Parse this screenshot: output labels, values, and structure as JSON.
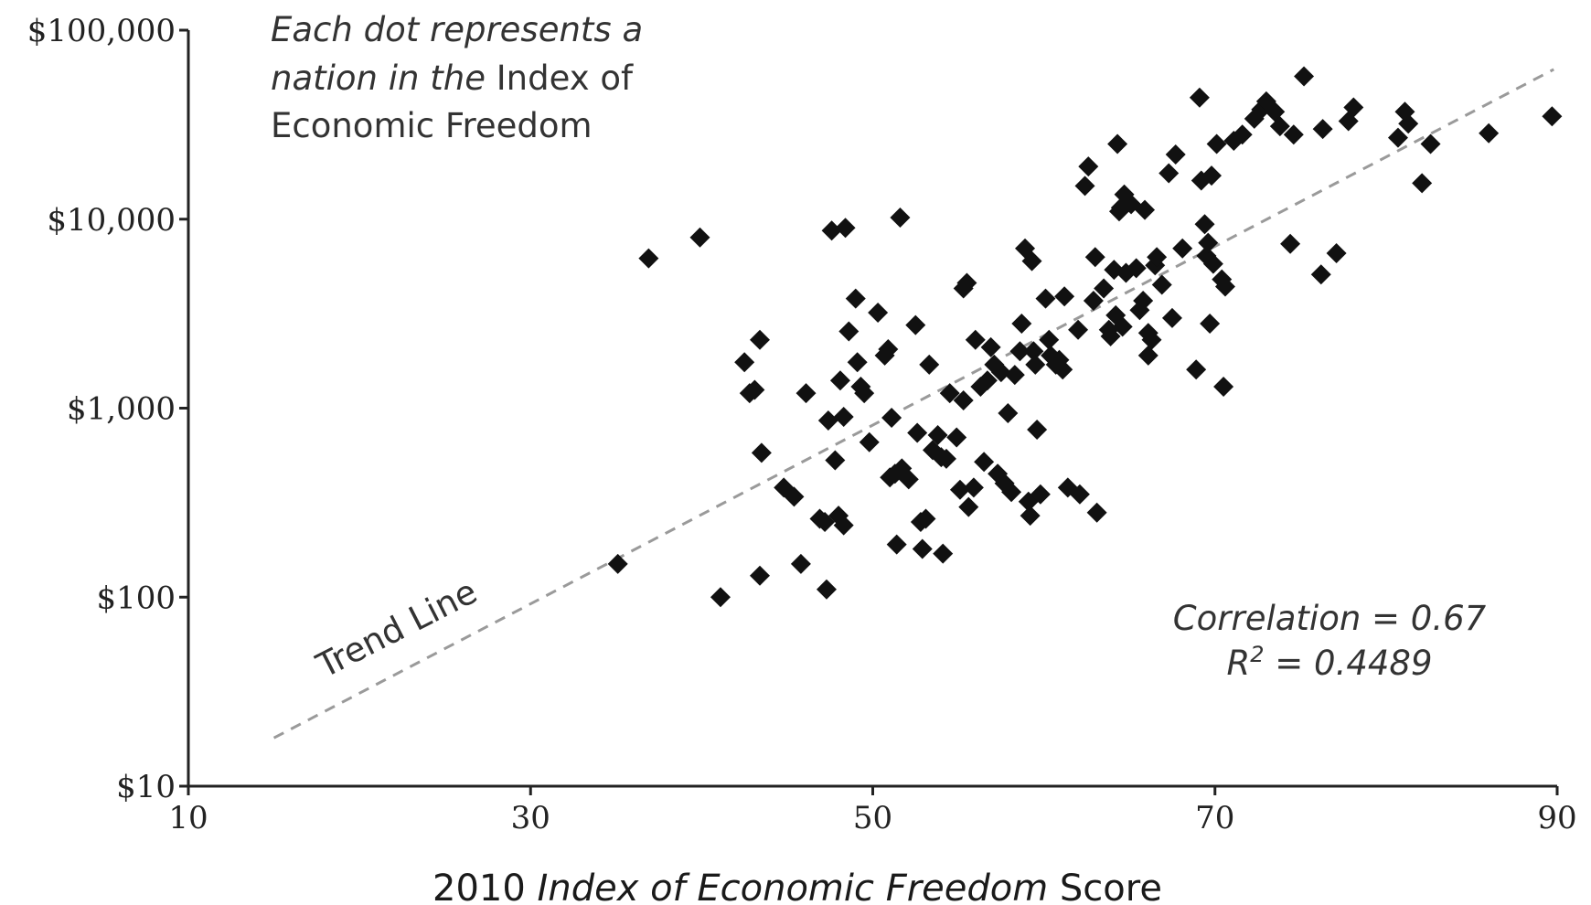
{
  "chart_data": {
    "type": "scatter",
    "title": "",
    "xlabel_plain": "2010 ",
    "xlabel_italic": "Index of Economic Freedom",
    "xlabel_tail": " Score",
    "ylabel": "",
    "xlim": [
      10,
      90
    ],
    "ylim": [
      10,
      100000
    ],
    "y_scale": "log",
    "grid": false,
    "x_ticks": [
      "10",
      "30",
      "50",
      "70",
      "90"
    ],
    "y_ticks": [
      "$100,000",
      "$10,000",
      "$1,000",
      "$100",
      "$10"
    ],
    "note": {
      "line1_italic": "Each dot represents a",
      "line2_italic": "nation in the",
      "line2_plain": " Index of",
      "line3_plain": "Economic Freedom"
    },
    "trend_label": "Trend Line",
    "correlation_label": "Correlation = 0.67",
    "r2_prefix": "R",
    "r2_sup": "2",
    "r2_suffix": " = 0.4489",
    "trend": {
      "x": [
        15,
        89.8
      ],
      "y": [
        18,
        62000
      ],
      "color": "#9a9a9a"
    },
    "point_color": "#111111",
    "points": [
      [
        36.9,
        6200
      ],
      [
        39.9,
        8000
      ],
      [
        35.1,
        150
      ],
      [
        41.1,
        100
      ],
      [
        42.5,
        1750
      ],
      [
        42.8,
        1200
      ],
      [
        43.1,
        1250
      ],
      [
        43.4,
        2300
      ],
      [
        43.5,
        580
      ],
      [
        43.4,
        130
      ],
      [
        44.8,
        380
      ],
      [
        45.4,
        340
      ],
      [
        45.8,
        150
      ],
      [
        46.1,
        1200
      ],
      [
        46.9,
        260
      ],
      [
        47.2,
        250
      ],
      [
        47.3,
        110
      ],
      [
        47.4,
        860
      ],
      [
        47.6,
        8700
      ],
      [
        48.0,
        270
      ],
      [
        48.3,
        900
      ],
      [
        47.8,
        530
      ],
      [
        48.1,
        1400
      ],
      [
        48.3,
        240
      ],
      [
        48.4,
        9000
      ],
      [
        48.6,
        2550
      ],
      [
        49.0,
        3800
      ],
      [
        49.1,
        1750
      ],
      [
        49.3,
        1300
      ],
      [
        49.5,
        1200
      ],
      [
        49.8,
        660
      ],
      [
        50.3,
        3200
      ],
      [
        50.7,
        1900
      ],
      [
        50.9,
        2050
      ],
      [
        51.0,
        430
      ],
      [
        51.1,
        890
      ],
      [
        51.3,
        450
      ],
      [
        51.4,
        190
      ],
      [
        51.6,
        10200
      ],
      [
        51.7,
        480
      ],
      [
        52.1,
        420
      ],
      [
        52.5,
        2750
      ],
      [
        52.6,
        740
      ],
      [
        52.8,
        250
      ],
      [
        52.9,
        180
      ],
      [
        53.1,
        260
      ],
      [
        53.3,
        1700
      ],
      [
        53.5,
        600
      ],
      [
        53.8,
        720
      ],
      [
        54.0,
        550
      ],
      [
        54.1,
        170
      ],
      [
        54.3,
        540
      ],
      [
        54.5,
        1200
      ],
      [
        54.9,
        700
      ],
      [
        55.1,
        370
      ],
      [
        55.3,
        4300
      ],
      [
        55.5,
        4600
      ],
      [
        55.3,
        1100
      ],
      [
        55.6,
        300
      ],
      [
        55.9,
        380
      ],
      [
        56.0,
        2300
      ],
      [
        56.3,
        1300
      ],
      [
        56.5,
        520
      ],
      [
        56.7,
        1400
      ],
      [
        56.9,
        2100
      ],
      [
        57.1,
        1700
      ],
      [
        57.3,
        450
      ],
      [
        57.5,
        1550
      ],
      [
        57.7,
        400
      ],
      [
        57.9,
        940
      ],
      [
        58.1,
        360
      ],
      [
        58.3,
        1500
      ],
      [
        58.6,
        2000
      ],
      [
        58.7,
        2800
      ],
      [
        58.9,
        7000
      ],
      [
        59.1,
        320
      ],
      [
        59.2,
        270
      ],
      [
        59.3,
        6000
      ],
      [
        59.4,
        2000
      ],
      [
        59.5,
        1700
      ],
      [
        59.6,
        770
      ],
      [
        59.8,
        350
      ],
      [
        60.1,
        3800
      ],
      [
        60.3,
        2300
      ],
      [
        60.4,
        1900
      ],
      [
        60.7,
        1700
      ],
      [
        60.9,
        1800
      ],
      [
        61.1,
        1600
      ],
      [
        61.2,
        3900
      ],
      [
        61.4,
        380
      ],
      [
        62.0,
        2600
      ],
      [
        62.1,
        350
      ],
      [
        62.4,
        15000
      ],
      [
        62.6,
        19000
      ],
      [
        62.9,
        3700
      ],
      [
        63.0,
        6300
      ],
      [
        63.1,
        280
      ],
      [
        63.5,
        4300
      ],
      [
        63.8,
        2600
      ],
      [
        63.9,
        2400
      ],
      [
        64.1,
        5400
      ],
      [
        64.2,
        3100
      ],
      [
        64.3,
        25000
      ],
      [
        64.4,
        11000
      ],
      [
        64.5,
        11500
      ],
      [
        64.6,
        2700
      ],
      [
        64.7,
        13500
      ],
      [
        64.8,
        5200
      ],
      [
        65.1,
        12000
      ],
      [
        65.4,
        5500
      ],
      [
        65.6,
        3300
      ],
      [
        65.8,
        3700
      ],
      [
        65.9,
        11200
      ],
      [
        66.1,
        2500
      ],
      [
        66.1,
        1900
      ],
      [
        66.3,
        2300
      ],
      [
        66.5,
        5700
      ],
      [
        66.6,
        6300
      ],
      [
        66.9,
        4500
      ],
      [
        67.3,
        17500
      ],
      [
        67.5,
        3000
      ],
      [
        67.7,
        22000
      ],
      [
        68.1,
        7000
      ],
      [
        68.9,
        1600
      ],
      [
        69.1,
        44000
      ],
      [
        69.2,
        16000
      ],
      [
        69.4,
        9400
      ],
      [
        69.5,
        6400
      ],
      [
        69.6,
        7500
      ],
      [
        69.7,
        2800
      ],
      [
        69.8,
        17000
      ],
      [
        69.9,
        5800
      ],
      [
        70.1,
        25000
      ],
      [
        70.4,
        4800
      ],
      [
        70.5,
        1300
      ],
      [
        70.6,
        4400
      ],
      [
        71.1,
        26000
      ],
      [
        71.6,
        28000
      ],
      [
        72.3,
        34000
      ],
      [
        72.7,
        38000
      ],
      [
        73.0,
        42000
      ],
      [
        73.5,
        37000
      ],
      [
        73.8,
        31000
      ],
      [
        74.4,
        7400
      ],
      [
        74.6,
        28000
      ],
      [
        75.2,
        57000
      ],
      [
        76.2,
        5100
      ],
      [
        76.3,
        30000
      ],
      [
        77.1,
        6600
      ],
      [
        77.8,
        33000
      ],
      [
        78.1,
        39000
      ],
      [
        80.7,
        27000
      ],
      [
        81.1,
        37000
      ],
      [
        81.3,
        32000
      ],
      [
        82.1,
        15500
      ],
      [
        82.6,
        25000
      ],
      [
        86.0,
        28500
      ],
      [
        89.7,
        35000
      ]
    ]
  }
}
